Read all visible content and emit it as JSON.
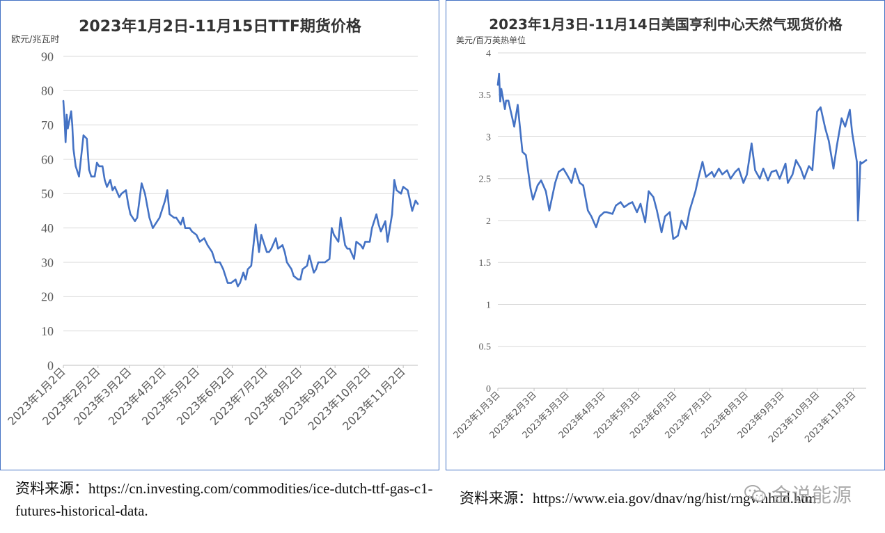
{
  "chart_data": [
    {
      "type": "line",
      "title": "2023年1月2日-11月15日TTF期货价格",
      "ylabel": "欧元/兆瓦时",
      "xlabel": "",
      "ylim": [
        0,
        90
      ],
      "yticks": [
        0,
        10,
        20,
        30,
        40,
        50,
        60,
        70,
        80,
        90
      ],
      "xlim": [
        "2023-01-02",
        "2023-11-15"
      ],
      "xtick_dates": [
        "2023-01-02",
        "2023-02-02",
        "2023-03-02",
        "2023-04-02",
        "2023-05-02",
        "2023-06-02",
        "2023-07-02",
        "2023-08-02",
        "2023-09-02",
        "2023-10-02",
        "2023-11-02"
      ],
      "xtick_labels": [
        "2023年1月2日",
        "2023年2月2日",
        "2023年3月2日",
        "2023年4月2日",
        "2023年5月2日",
        "2023年6月2日",
        "2023年7月2日",
        "2023年8月2日",
        "2023年9月2日",
        "2023年10月2日",
        "2023年11月2日"
      ],
      "grid": true,
      "color": "#4472c4",
      "x": [
        "2023-01-02",
        "2023-01-03",
        "2023-01-04",
        "2023-01-05",
        "2023-01-06",
        "2023-01-09",
        "2023-01-10",
        "2023-01-11",
        "2023-01-13",
        "2023-01-16",
        "2023-01-18",
        "2023-01-20",
        "2023-01-23",
        "2023-01-25",
        "2023-01-27",
        "2023-01-30",
        "2023-02-01",
        "2023-02-03",
        "2023-02-06",
        "2023-02-08",
        "2023-02-10",
        "2023-02-13",
        "2023-02-15",
        "2023-02-17",
        "2023-02-21",
        "2023-02-23",
        "2023-02-27",
        "2023-03-01",
        "2023-03-03",
        "2023-03-07",
        "2023-03-09",
        "2023-03-13",
        "2023-03-16",
        "2023-03-20",
        "2023-03-23",
        "2023-03-27",
        "2023-03-29",
        "2023-03-31",
        "2023-04-03",
        "2023-04-05",
        "2023-04-07",
        "2023-04-11",
        "2023-04-13",
        "2023-04-17",
        "2023-04-19",
        "2023-04-21",
        "2023-04-25",
        "2023-04-27",
        "2023-05-01",
        "2023-05-04",
        "2023-05-08",
        "2023-05-11",
        "2023-05-15",
        "2023-05-18",
        "2023-05-22",
        "2023-05-25",
        "2023-05-29",
        "2023-06-01",
        "2023-06-05",
        "2023-06-07",
        "2023-06-09",
        "2023-06-12",
        "2023-06-14",
        "2023-06-16",
        "2023-06-19",
        "2023-06-21",
        "2023-06-23",
        "2023-06-26",
        "2023-06-28",
        "2023-07-03",
        "2023-07-05",
        "2023-07-07",
        "2023-07-11",
        "2023-07-13",
        "2023-07-17",
        "2023-07-19",
        "2023-07-21",
        "2023-07-25",
        "2023-07-27",
        "2023-07-31",
        "2023-08-02",
        "2023-08-04",
        "2023-08-08",
        "2023-08-10",
        "2023-08-14",
        "2023-08-16",
        "2023-08-18",
        "2023-08-22",
        "2023-08-24",
        "2023-08-28",
        "2023-08-30",
        "2023-09-01",
        "2023-09-05",
        "2023-09-07",
        "2023-09-11",
        "2023-09-13",
        "2023-09-15",
        "2023-09-19",
        "2023-09-21",
        "2023-09-25",
        "2023-09-27",
        "2023-09-29",
        "2023-10-03",
        "2023-10-05",
        "2023-10-09",
        "2023-10-11",
        "2023-10-13",
        "2023-10-17",
        "2023-10-19",
        "2023-10-23",
        "2023-10-25",
        "2023-10-27",
        "2023-10-31",
        "2023-11-02",
        "2023-11-06",
        "2023-11-08",
        "2023-11-10",
        "2023-11-13",
        "2023-11-15"
      ],
      "y": [
        77,
        72,
        65,
        73,
        69,
        74,
        70,
        63,
        58,
        55,
        61,
        67,
        66,
        57,
        55,
        55,
        59,
        58,
        58,
        54,
        52,
        54,
        51,
        52,
        49,
        50,
        51,
        47,
        44,
        42,
        43,
        53,
        50,
        43,
        40,
        42,
        43,
        45,
        48,
        51,
        44,
        43,
        43,
        41,
        43,
        40,
        40,
        39,
        38,
        36,
        37,
        35,
        33,
        30,
        30,
        28,
        24,
        24,
        25,
        23,
        24,
        27,
        25,
        28,
        29,
        35,
        41,
        33,
        38,
        33,
        33,
        34,
        37,
        34,
        35,
        33,
        30,
        28,
        26,
        25,
        25,
        28,
        29,
        32,
        27,
        28,
        30,
        30,
        30,
        31,
        40,
        38,
        36,
        43,
        35,
        34,
        34,
        31,
        36,
        35,
        34,
        36,
        36,
        40,
        44,
        41,
        39,
        42,
        36,
        44,
        54,
        51,
        50,
        52,
        51,
        48,
        45,
        48,
        47
      ]
    },
    {
      "type": "line",
      "title": "2023年1月3日-11月14日美国亨利中心天然气现货价格",
      "ylabel": "美元/百万英热单位",
      "xlabel": "",
      "ylim": [
        0,
        4
      ],
      "yticks": [
        0,
        0.5,
        1,
        1.5,
        2,
        2.5,
        3,
        3.5,
        4
      ],
      "ytick_labels": [
        "0",
        "0.5",
        "1",
        "1.5",
        "2",
        "2.5",
        "3",
        "3.5",
        "4"
      ],
      "xlim": [
        "2023-01-03",
        "2023-11-14"
      ],
      "xtick_dates": [
        "2023-01-03",
        "2023-02-03",
        "2023-03-03",
        "2023-04-03",
        "2023-05-03",
        "2023-06-03",
        "2023-07-03",
        "2023-08-03",
        "2023-09-03",
        "2023-10-03",
        "2023-11-03"
      ],
      "xtick_labels": [
        "2023年1月3日",
        "2023年2月3日",
        "2023年3月3日",
        "2023年4月3日",
        "2023年5月3日",
        "2023年6月3日",
        "2023年7月3日",
        "2023年8月3日",
        "2023年9月3日",
        "2023年10月3日",
        "2023年11月3日"
      ],
      "grid": true,
      "color": "#4472c4",
      "x": [
        "2023-01-03",
        "2023-01-04",
        "2023-01-05",
        "2023-01-06",
        "2023-01-09",
        "2023-01-10",
        "2023-01-12",
        "2023-01-17",
        "2023-01-20",
        "2023-01-24",
        "2023-01-27",
        "2023-01-31",
        "2023-02-02",
        "2023-02-06",
        "2023-02-09",
        "2023-02-13",
        "2023-02-16",
        "2023-02-21",
        "2023-02-24",
        "2023-02-28",
        "2023-03-03",
        "2023-03-07",
        "2023-03-10",
        "2023-03-14",
        "2023-03-17",
        "2023-03-21",
        "2023-03-24",
        "2023-03-28",
        "2023-03-31",
        "2023-04-04",
        "2023-04-06",
        "2023-04-11",
        "2023-04-14",
        "2023-04-18",
        "2023-04-21",
        "2023-04-25",
        "2023-04-28",
        "2023-05-02",
        "2023-05-05",
        "2023-05-09",
        "2023-05-12",
        "2023-05-16",
        "2023-05-19",
        "2023-05-23",
        "2023-05-26",
        "2023-05-30",
        "2023-06-02",
        "2023-06-06",
        "2023-06-09",
        "2023-06-13",
        "2023-06-16",
        "2023-06-21",
        "2023-06-23",
        "2023-06-27",
        "2023-06-30",
        "2023-07-05",
        "2023-07-07",
        "2023-07-11",
        "2023-07-14",
        "2023-07-18",
        "2023-07-21",
        "2023-07-25",
        "2023-07-28",
        "2023-08-01",
        "2023-08-04",
        "2023-08-08",
        "2023-08-11",
        "2023-08-15",
        "2023-08-18",
        "2023-08-22",
        "2023-08-25",
        "2023-08-29",
        "2023-09-01",
        "2023-09-06",
        "2023-09-08",
        "2023-09-12",
        "2023-09-15",
        "2023-09-19",
        "2023-09-22",
        "2023-09-26",
        "2023-09-29",
        "2023-10-03",
        "2023-10-06",
        "2023-10-10",
        "2023-10-13",
        "2023-10-17",
        "2023-10-20",
        "2023-10-24",
        "2023-10-27",
        "2023-10-31",
        "2023-11-02",
        "2023-11-06",
        "2023-11-07",
        "2023-11-08",
        "2023-11-09",
        "2023-11-10",
        "2023-11-14"
      ],
      "y": [
        3.62,
        3.75,
        3.42,
        3.57,
        3.33,
        3.43,
        3.43,
        3.12,
        3.38,
        2.82,
        2.78,
        2.38,
        2.25,
        2.42,
        2.48,
        2.35,
        2.12,
        2.45,
        2.58,
        2.62,
        2.55,
        2.45,
        2.62,
        2.45,
        2.42,
        2.12,
        2.05,
        1.92,
        2.05,
        2.1,
        2.1,
        2.08,
        2.18,
        2.22,
        2.16,
        2.2,
        2.22,
        2.1,
        2.2,
        1.98,
        2.35,
        2.28,
        2.12,
        1.86,
        2.05,
        2.1,
        1.78,
        1.82,
        2,
        1.9,
        2.12,
        2.35,
        2.48,
        2.7,
        2.52,
        2.58,
        2.52,
        2.62,
        2.55,
        2.6,
        2.5,
        2.58,
        2.62,
        2.45,
        2.55,
        2.92,
        2.6,
        2.5,
        2.62,
        2.48,
        2.58,
        2.6,
        2.5,
        2.68,
        2.45,
        2.55,
        2.72,
        2.62,
        2.5,
        2.65,
        2.6,
        3.3,
        3.35,
        3.1,
        2.95,
        2.62,
        2.9,
        3.22,
        3.12,
        3.32,
        3.05,
        2.7,
        2,
        2.32,
        2.7,
        2.68,
        2.72
      ]
    }
  ],
  "sources": {
    "left": "资料来源：https://cn.investing.com/commodities/ice-dutch-ttf-gas-c1-futures-historical-data.",
    "right": "资料来源：https://www.eia.gov/dnav/ng/hist/rngwhhdd.htm"
  },
  "watermark": {
    "text": "金说能源",
    "icon": "wechat-icon"
  }
}
